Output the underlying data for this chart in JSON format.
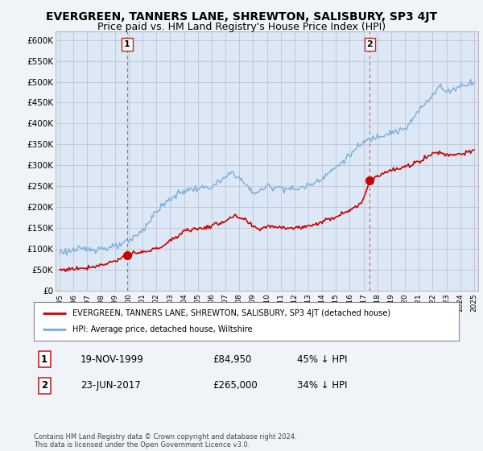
{
  "title": "EVERGREEN, TANNERS LANE, SHREWTON, SALISBURY, SP3 4JT",
  "subtitle": "Price paid vs. HM Land Registry's House Price Index (HPI)",
  "title_fontsize": 10,
  "subtitle_fontsize": 9,
  "background_color": "#f0f4f8",
  "plot_background": "#dce8f5",
  "grid_color": "#bbbbcc",
  "ylim": [
    0,
    620000
  ],
  "yticks": [
    0,
    50000,
    100000,
    150000,
    200000,
    250000,
    300000,
    350000,
    400000,
    450000,
    500000,
    550000,
    600000
  ],
  "ytick_labels": [
    "£0",
    "£50K",
    "£100K",
    "£150K",
    "£200K",
    "£250K",
    "£300K",
    "£350K",
    "£400K",
    "£450K",
    "£500K",
    "£550K",
    "£600K"
  ],
  "sale1_year": 1999.88,
  "sale1_price": 84950,
  "sale1_label": "1",
  "sale1_date": "19-NOV-1999",
  "sale1_pct": "45% ↓ HPI",
  "sale2_year": 2017.46,
  "sale2_price": 265000,
  "sale2_label": "2",
  "sale2_date": "23-JUN-2017",
  "sale2_pct": "34% ↓ HPI",
  "legend_property": "EVERGREEN, TANNERS LANE, SHREWTON, SALISBURY, SP3 4JT (detached house)",
  "legend_hpi": "HPI: Average price, detached house, Wiltshire",
  "footer": "Contains HM Land Registry data © Crown copyright and database right 2024.\nThis data is licensed under the Open Government Licence v3.0.",
  "red_color": "#cc0000",
  "blue_color": "#7aaddb",
  "label_box_color": "#cc2222"
}
